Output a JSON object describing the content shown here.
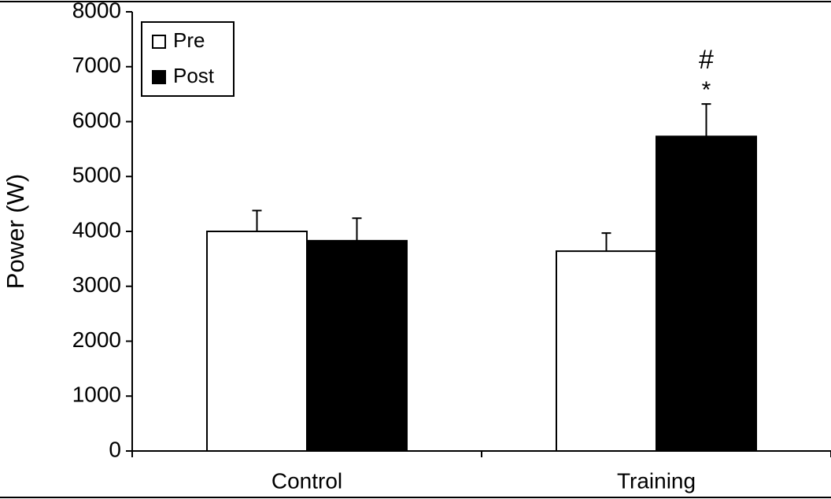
{
  "chart_data": {
    "type": "bar",
    "y_label": "Power (W)",
    "categories": [
      "Control",
      "Training"
    ],
    "series": [
      {
        "name": "Pre",
        "color": "#ffffff",
        "values": [
          4000,
          3640
        ],
        "errors": [
          380,
          330
        ]
      },
      {
        "name": "Post",
        "color": "#000000",
        "values": [
          3830,
          5730
        ],
        "errors": [
          410,
          590
        ]
      }
    ],
    "annotations": [
      "#",
      "*"
    ],
    "ylim": [
      0,
      8000
    ],
    "yticks": [
      0,
      1000,
      2000,
      3000,
      4000,
      5000,
      6000,
      7000,
      8000
    ],
    "grid": false,
    "legend": "upper left"
  }
}
